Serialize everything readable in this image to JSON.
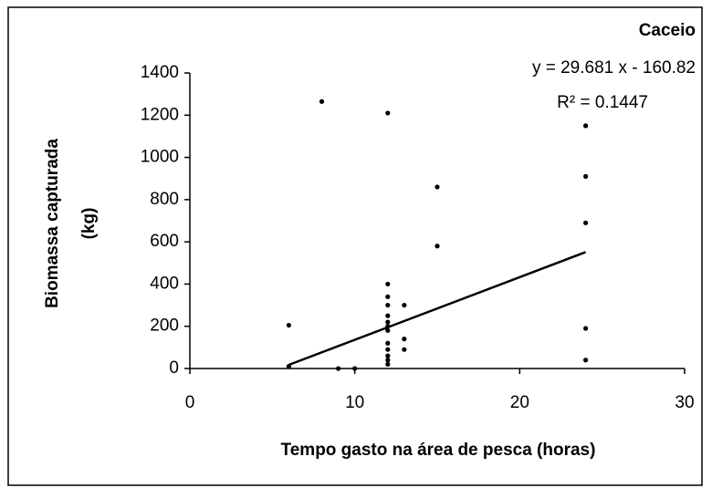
{
  "chart_data": {
    "type": "scatter",
    "title": "Caceio",
    "xlabel": "Tempo gasto na área de pesca (horas)",
    "ylabel": [
      "Biomassa capturada",
      "(kg)"
    ],
    "x": [
      6,
      6,
      8,
      9,
      10,
      12,
      12,
      12,
      12,
      12,
      12,
      12,
      12,
      12,
      12,
      12,
      12,
      12,
      13,
      13,
      13,
      15,
      15,
      24,
      24,
      24,
      24,
      24
    ],
    "y": [
      205,
      10,
      1265,
      0,
      0,
      1210,
      400,
      340,
      300,
      250,
      220,
      200,
      180,
      120,
      90,
      60,
      40,
      20,
      300,
      140,
      90,
      860,
      580,
      1150,
      910,
      690,
      190,
      40
    ],
    "color": "#000000",
    "xlim": [
      0,
      30
    ],
    "xticks": [
      0,
      10,
      20,
      30
    ],
    "ylim": [
      0,
      1400
    ],
    "yticks": [
      0,
      200,
      400,
      600,
      800,
      1000,
      1200,
      1400
    ],
    "trendline": {
      "equation": "y = 29.681 x - 160.82",
      "r2": "R² = 0.1447",
      "slope": 29.681,
      "intercept": -160.82
    }
  }
}
